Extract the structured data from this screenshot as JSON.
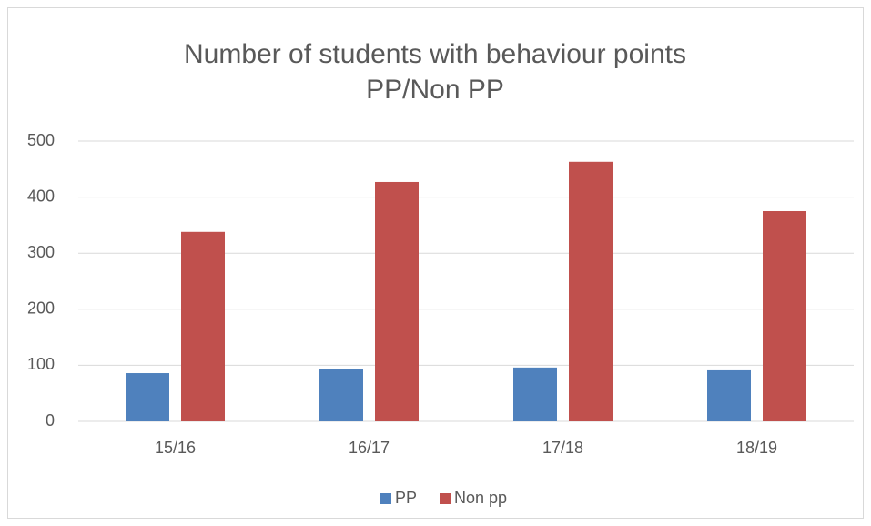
{
  "chart_data": {
    "type": "bar",
    "title": [
      "Number of students with behaviour points",
      "PP/Non PP"
    ],
    "categories": [
      "15/16",
      "16/17",
      "17/18",
      "18/19"
    ],
    "series": [
      {
        "name": "PP",
        "color": "#4f81bd",
        "values": [
          86,
          93,
          96,
          91
        ]
      },
      {
        "name": "Non pp",
        "color": "#c0504d",
        "values": [
          338,
          427,
          463,
          375
        ]
      }
    ],
    "ylim": [
      0,
      500
    ],
    "yticks": [
      0,
      100,
      200,
      300,
      400,
      500
    ],
    "grid": true,
    "legend": "bottom"
  }
}
